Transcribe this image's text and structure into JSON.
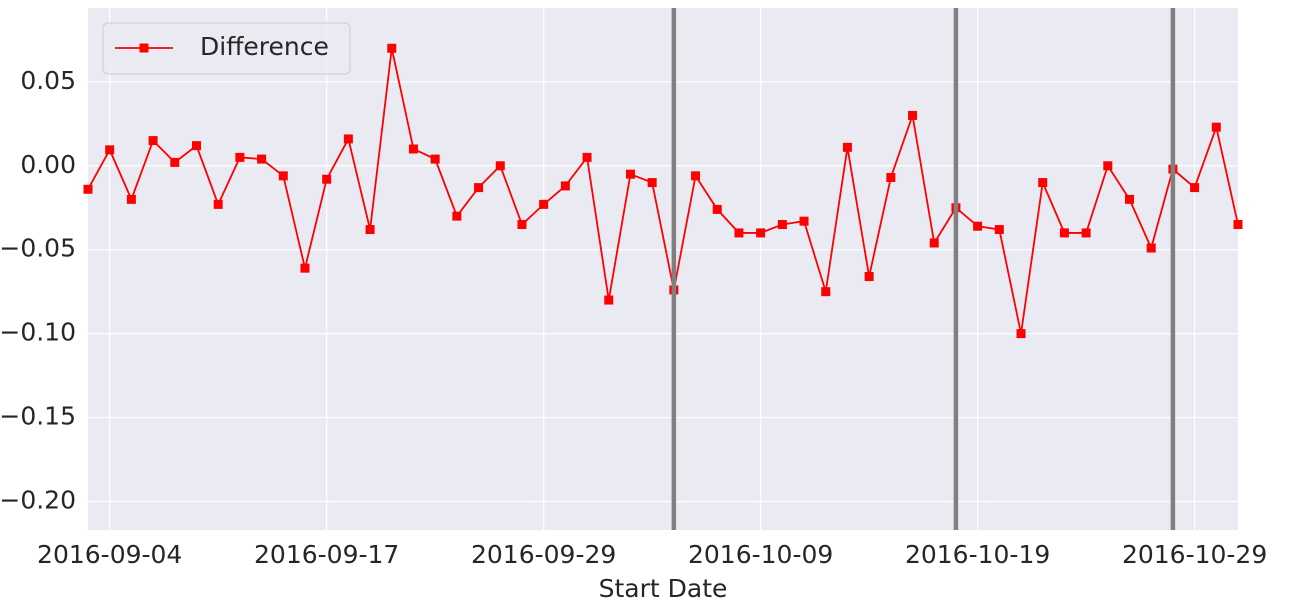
{
  "chart_data": {
    "type": "line",
    "x_label": "Start Date",
    "categories": [
      null,
      "2016-09-04",
      null,
      null,
      null,
      null,
      null,
      null,
      null,
      null,
      null,
      "2016-09-17",
      null,
      null,
      null,
      null,
      null,
      null,
      null,
      null,
      null,
      "2016-09-29",
      null,
      null,
      null,
      null,
      null,
      null,
      null,
      null,
      null,
      "2016-10-09",
      null,
      null,
      null,
      null,
      null,
      null,
      null,
      null,
      null,
      "2016-10-19",
      null,
      null,
      null,
      null,
      null,
      null,
      null,
      null,
      null,
      "2016-10-29",
      null,
      null
    ],
    "series": [
      {
        "name": "Difference",
        "color": "#ff0000",
        "values": [
          -0.014,
          0.0095,
          -0.02,
          0.015,
          0.002,
          0.012,
          -0.023,
          0.005,
          0.004,
          -0.006,
          -0.061,
          -0.008,
          0.016,
          -0.038,
          0.07,
          0.01,
          0.004,
          -0.03,
          -0.013,
          0.0,
          -0.035,
          -0.023,
          -0.012,
          0.005,
          -0.08,
          -0.005,
          -0.01,
          -0.074,
          -0.006,
          -0.026,
          -0.04,
          -0.04,
          -0.035,
          -0.033,
          -0.075,
          0.011,
          -0.066,
          -0.007,
          0.03,
          -0.046,
          -0.025,
          -0.036,
          -0.038,
          -0.1,
          -0.01,
          -0.04,
          -0.04,
          0.0,
          -0.02,
          -0.049,
          -0.002,
          -0.013,
          0.023,
          -0.035
        ]
      }
    ],
    "vertical_lines": [
      27,
      40,
      50
    ],
    "vertical_line_color": "#808080",
    "ylim": [
      -0.217,
      0.094
    ],
    "yticks": [
      {
        "value": 0.05,
        "label": "0.05"
      },
      {
        "value": 0,
        "label": "0.00"
      },
      {
        "value": -0.05,
        "label": "−0.05"
      },
      {
        "value": -0.1,
        "label": "−0.10"
      },
      {
        "value": -0.15,
        "label": "−0.15"
      },
      {
        "value": -0.2,
        "label": "−0.20"
      }
    ],
    "grid": true,
    "legend": "upper left"
  }
}
